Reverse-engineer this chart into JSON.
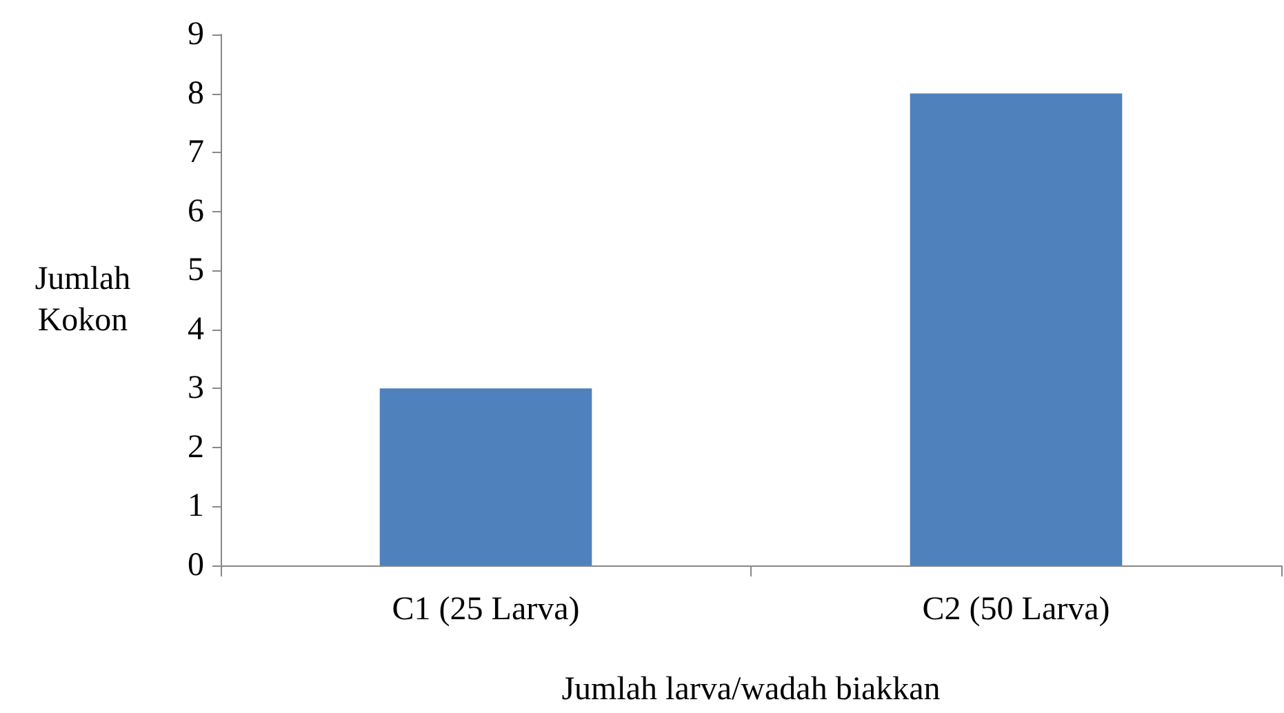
{
  "chart_data": {
    "type": "bar",
    "xlabel": "Jumlah larva/wadah biakkan",
    "ylabel": "Jumlah Kokon",
    "categories": [
      "C1 (25 Larva)",
      "C2 (50 Larva)"
    ],
    "values": [
      3,
      8
    ],
    "color": "#4f81bd",
    "ylim": [
      0,
      9
    ],
    "yticks": [
      0,
      1,
      2,
      3,
      4,
      5,
      6,
      7,
      8,
      9
    ]
  }
}
